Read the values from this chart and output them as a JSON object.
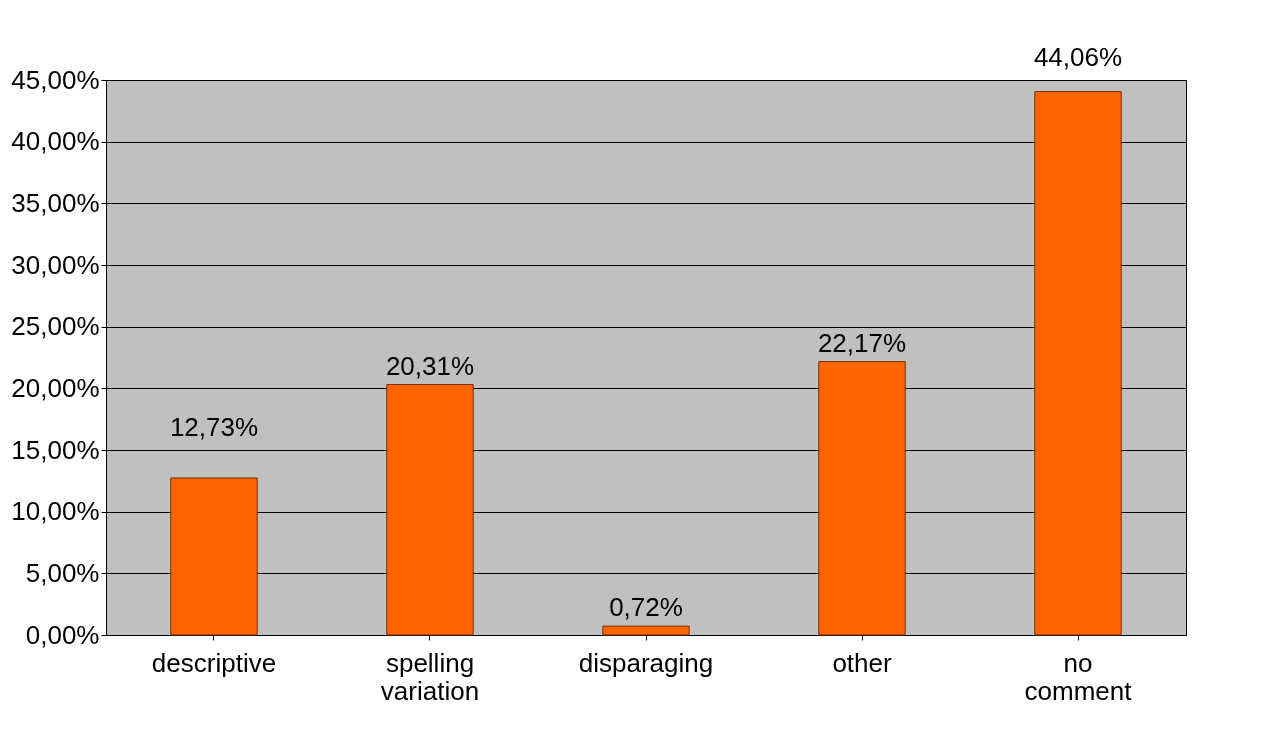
{
  "chart_data": {
    "type": "bar",
    "categories": [
      "descriptive",
      "spelling variation",
      "disparaging",
      "other",
      "no comment"
    ],
    "values": [
      12.73,
      20.31,
      0.72,
      22.17,
      44.06
    ],
    "color": "#ff6600",
    "value_labels": [
      "12,73%",
      "20,31%",
      "0,72%",
      "22,17%",
      "44,06%"
    ],
    "ylim": [
      0,
      45
    ],
    "yticks": [
      {
        "value": 0,
        "label": "0,00%"
      },
      {
        "value": 5,
        "label": "5,00%"
      },
      {
        "value": 10,
        "label": "10,00%"
      },
      {
        "value": 15,
        "label": "15,00%"
      },
      {
        "value": 20,
        "label": "20,00%"
      },
      {
        "value": 25,
        "label": "25,00%"
      },
      {
        "value": 30,
        "label": "30,00%"
      },
      {
        "value": 35,
        "label": "35,00%"
      },
      {
        "value": 40,
        "label": "40,00%"
      },
      {
        "value": 45,
        "label": "45,00%"
      }
    ],
    "grid": "y"
  }
}
